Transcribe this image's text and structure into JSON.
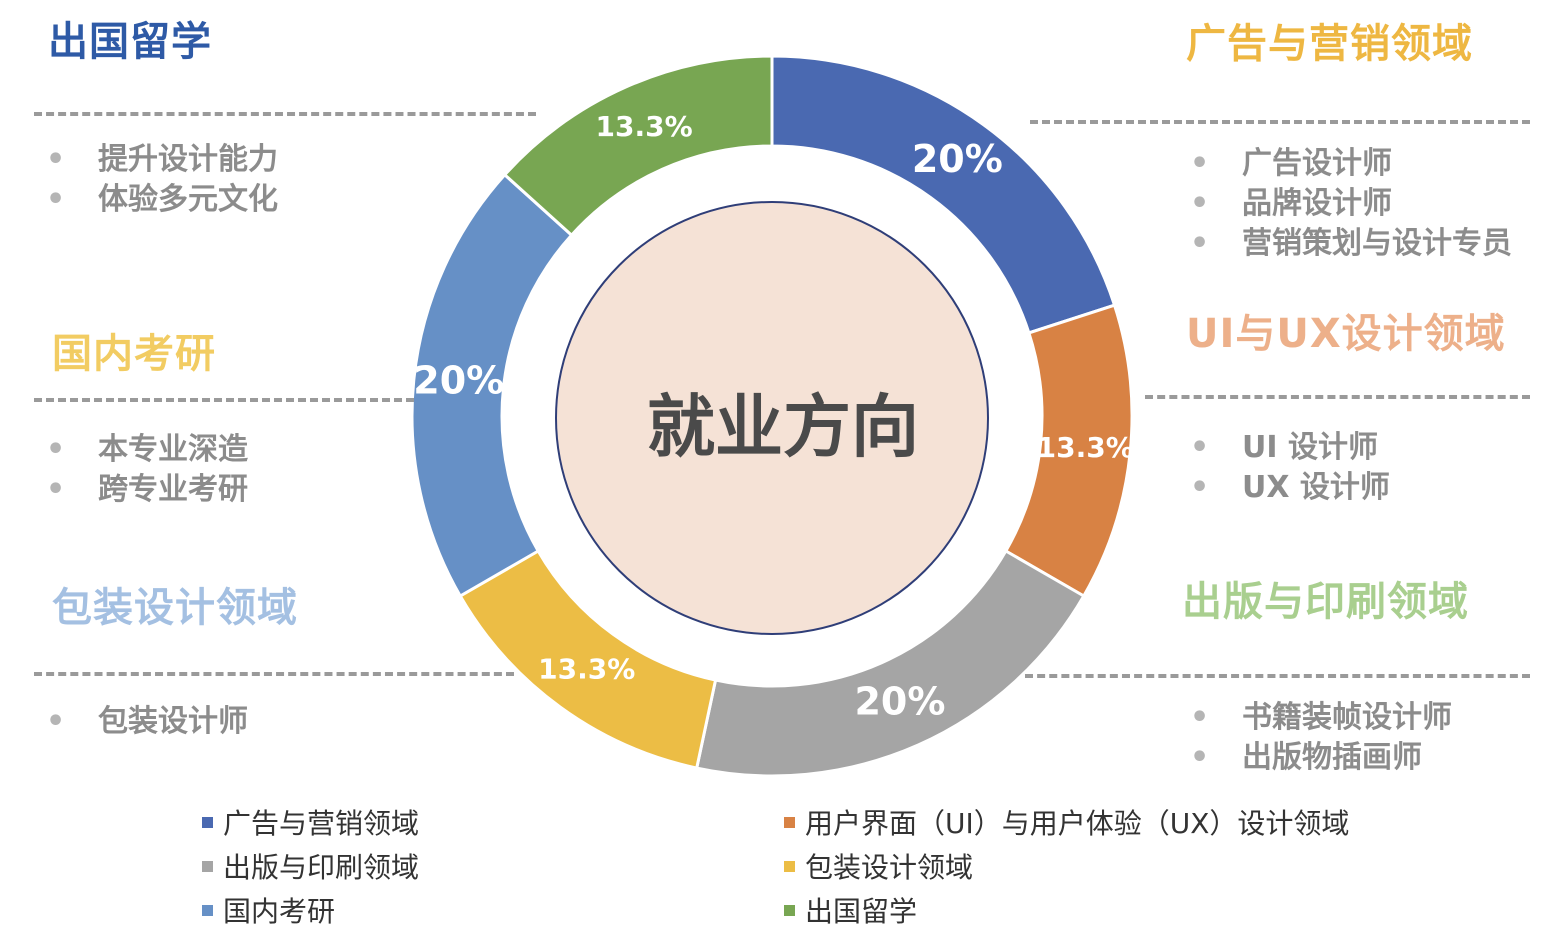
{
  "chart_data": {
    "type": "pie",
    "variant": "donut",
    "center_label": "就业方向",
    "categories": [
      "广告与营销领域",
      "用户界面（UI）与用户体验（UX）设计领域",
      "出版与印刷领域",
      "包装设计领域",
      "国内考研",
      "出国留学"
    ],
    "values": [
      20,
      13.3,
      20,
      13.3,
      20,
      13.3
    ],
    "data_labels": [
      "20%",
      "13.3%",
      "20%",
      "13.3%",
      "20%",
      "13.3%"
    ],
    "colors": [
      "#4a69b1",
      "#d88244",
      "#a5a5a5",
      "#ecbd45",
      "#6690c6",
      "#78a652"
    ],
    "legend_position": "bottom"
  },
  "blocks": {
    "abroad": {
      "title": "出国留学",
      "color": "#2e5aa6",
      "items": [
        "提升设计能力",
        "体验多元文化"
      ]
    },
    "postgrad": {
      "title": "国内考研",
      "color": "#f2cc62",
      "items": [
        "本专业深造",
        "跨专业考研"
      ]
    },
    "packaging": {
      "title": "包装设计领域",
      "color": "#a4c0e2",
      "items": [
        "包装设计师"
      ]
    },
    "advertising": {
      "title": "广告与营销领域",
      "color": "#eeb742",
      "items": [
        "广告设计师",
        "品牌设计师",
        "营销策划与设计专员"
      ]
    },
    "uiux": {
      "title": "UI与UX设计领域",
      "color": "#edb08a",
      "items": [
        "UI 设计师",
        "UX 设计师"
      ]
    },
    "publishing": {
      "title": "出版与印刷领域",
      "color": "#a9cf8f",
      "items": [
        "书籍装帧设计师",
        "出版物插画师"
      ]
    }
  },
  "bullet_glyph": "•",
  "center_fill": "#f5e2d6",
  "center_stroke": "#2f3e78"
}
